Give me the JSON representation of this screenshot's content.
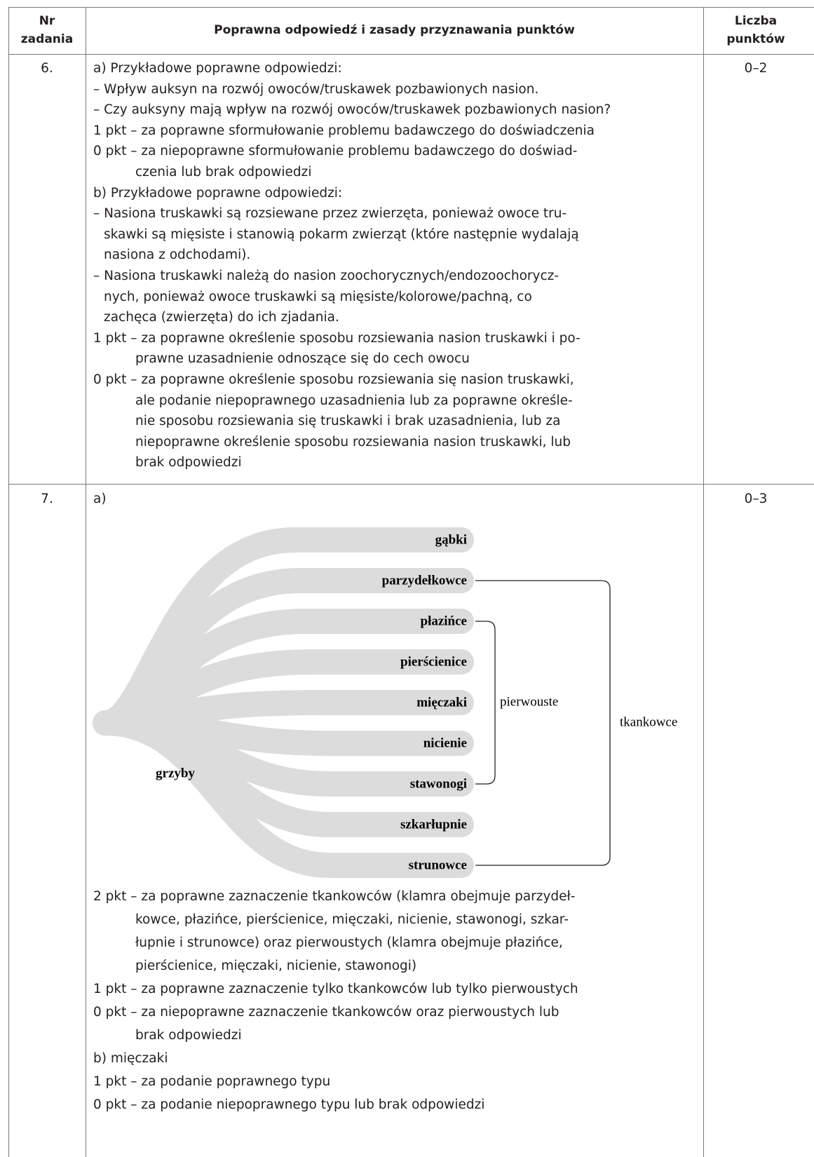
{
  "header": {
    "task_number": [
      "Nr",
      "zadania"
    ],
    "answer": "Poprawna odpowiedź i zasady przyznawania punktów",
    "points": [
      "Liczba",
      "punktów"
    ]
  },
  "rows": [
    {
      "number": "6.",
      "points": "0–2",
      "lines": [
        "a) Przykładowe poprawne odpowiedzi:",
        "– Wpływ auksyn na rozwój owoców/truskawek pozbawionych nasion.",
        "– Czy auksyny mają wpływ na rozwój owoców/truskawek pozbawionych nasion?",
        "1 pkt – za poprawne sformułowanie problemu badawczego do doświadczenia",
        "0 pkt – za niepoprawne sformułowanie problemu badawczego do doświad-",
        "czenia lub brak odpowiedzi",
        "b) Przykładowe poprawne odpowiedzi:",
        "– Nasiona truskawki są rozsiewane przez zwierzęta, ponieważ owoce tru-",
        "skawki są mięsiste i stanowią pokarm zwierząt (które następnie wydalają",
        "nasiona z odchodami).",
        "– Nasiona truskawki należą do nasion zoochorycznych/endozoochorycz-",
        "nych, ponieważ owoce truskawki są mięsiste/kolorowe/pachną, co",
        "zachęca (zwierzęta) do ich zjadania.",
        "1 pkt – za poprawne określenie sposobu rozsiewania nasion truskawki i po-",
        "prawne uzasadnienie odnoszące się do cech owocu",
        "0 pkt – za poprawne określenie sposobu rozsiewania się nasion truskawki,",
        "ale podanie niepoprawnego uzasadnienia lub za poprawne określe-",
        "nie sposobu rozsiewania się truskawki i brak uzasadnienia, lub za",
        "niepoprawne określenie sposobu rozsiewania nasion truskawki, lub",
        "brak odpowiedzi"
      ]
    },
    {
      "number": "7.",
      "points": "0–3",
      "part_a": "a)",
      "diagram": {
        "taxa": [
          "gąbki",
          "parzydełkowce",
          "płazińce",
          "pierścienice",
          "mięczaki",
          "nicienie",
          "stawonogi",
          "szkarłupnie",
          "strunowce"
        ],
        "outgroup": "grzyby",
        "brackets": [
          "pierwouste",
          "tkankowce"
        ]
      },
      "lines": [
        "2 pkt – za poprawne zaznaczenie tkankowców (klamra obejmuje parzydeł-",
        "kowce, płazińce, pierścienice, mięczaki, nicienie, stawonogi, szkar-",
        "łupnie i strunowce) oraz pierwoustych (klamra obejmuje płazińce,",
        "pierścienice, mięczaki, nicienie, stawonogi)",
        "1 pkt – za poprawne zaznaczenie tylko tkankowców lub tylko pierwoustych",
        "0 pkt – za niepoprawne zaznaczenie tkankowców oraz pierwoustych lub",
        "brak odpowiedzi",
        "b) mięczaki",
        "1 pkt – za podanie poprawnego typu",
        "0 pkt – za podanie niepoprawnego typu lub brak odpowiedzi"
      ]
    }
  ]
}
